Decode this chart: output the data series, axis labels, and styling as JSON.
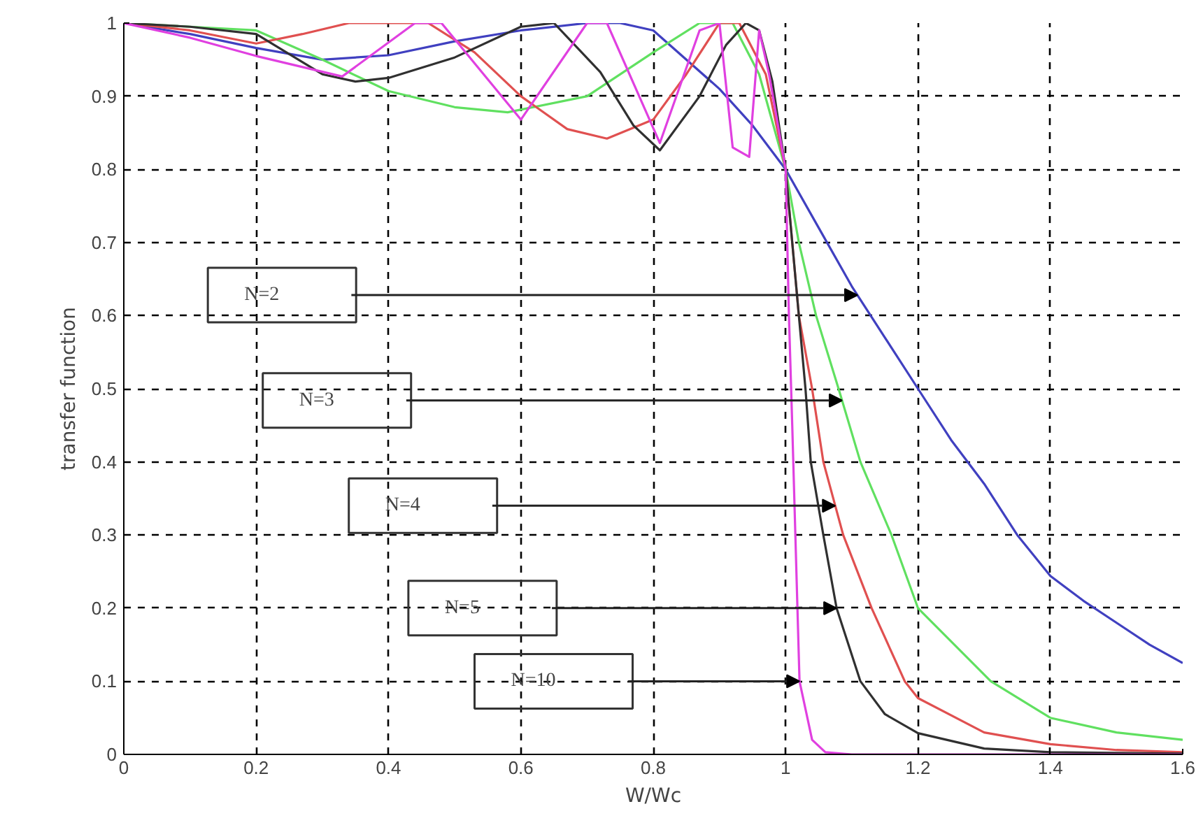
{
  "chart_data": {
    "type": "line",
    "xlabel": "W/Wc",
    "ylabel": "transfer function",
    "xlim": [
      0,
      1.6
    ],
    "ylim": [
      0,
      1
    ],
    "xticks": [
      0,
      0.2,
      0.4,
      0.6,
      0.8,
      1,
      1.2,
      1.4,
      1.6
    ],
    "yticks": [
      0,
      0.1,
      0.2,
      0.3,
      0.4,
      0.5,
      0.6,
      0.7,
      0.8,
      0.9,
      1
    ],
    "grid": true,
    "marker": "none",
    "line_style": "solid",
    "series": [
      {
        "color": "#4040c0",
        "x": [
          0,
          0.1,
          0.2,
          0.3,
          0.4,
          0.5,
          0.6,
          0.7,
          0.75,
          0.8,
          0.9,
          0.95,
          1.0,
          1.05,
          1.1,
          1.15,
          1.2,
          1.25,
          1.3,
          1.35,
          1.4,
          1.45,
          1.5,
          1.55,
          1.6
        ],
        "values": [
          1,
          0.985,
          0.966,
          0.95,
          0.956,
          0.975,
          0.99,
          1.0,
          1.0,
          0.99,
          0.91,
          0.86,
          0.8,
          0.72,
          0.64,
          0.57,
          0.5,
          0.43,
          0.37,
          0.3,
          0.244,
          0.21,
          0.18,
          0.15,
          0.125
        ]
      },
      {
        "color": "#60e060",
        "x": [
          0,
          0.1,
          0.2,
          0.3,
          0.4,
          0.5,
          0.58,
          0.7,
          0.8,
          0.87,
          0.92,
          0.96,
          1.0,
          1.02,
          1.046,
          1.08,
          1.113,
          1.16,
          1.2,
          1.31,
          1.4,
          1.5,
          1.6
        ],
        "values": [
          1,
          0.995,
          0.99,
          0.95,
          0.907,
          0.885,
          0.878,
          0.9,
          0.96,
          1.0,
          1.0,
          0.93,
          0.8,
          0.7,
          0.6,
          0.5,
          0.4,
          0.3,
          0.2,
          0.1,
          0.05,
          0.03,
          0.02
        ]
      },
      {
        "color": "#e05050",
        "x": [
          0,
          0.1,
          0.2,
          0.27,
          0.34,
          0.46,
          0.53,
          0.6,
          0.67,
          0.73,
          0.8,
          0.85,
          0.9,
          0.93,
          0.97,
          1.0,
          1.01,
          1.02,
          1.04,
          1.057,
          1.087,
          1.13,
          1.18,
          1.2,
          1.3,
          1.4,
          1.5,
          1.6
        ],
        "values": [
          1,
          0.99,
          0.972,
          0.985,
          1.0,
          1.0,
          0.96,
          0.9,
          0.855,
          0.842,
          0.868,
          0.93,
          1.0,
          1.0,
          0.93,
          0.8,
          0.7,
          0.6,
          0.5,
          0.4,
          0.3,
          0.2,
          0.1,
          0.077,
          0.03,
          0.014,
          0.006,
          0.003
        ]
      },
      {
        "color": "#303030",
        "x": [
          0,
          0.1,
          0.2,
          0.3,
          0.35,
          0.4,
          0.5,
          0.6,
          0.65,
          0.72,
          0.77,
          0.81,
          0.87,
          0.91,
          0.94,
          0.96,
          0.98,
          1.0,
          1.01,
          1.02,
          1.03,
          1.038,
          1.057,
          1.077,
          1.113,
          1.15,
          1.2,
          1.3,
          1.4,
          1.6
        ],
        "values": [
          1,
          0.995,
          0.985,
          0.93,
          0.92,
          0.925,
          0.953,
          0.995,
          1.0,
          0.933,
          0.86,
          0.826,
          0.9,
          0.97,
          1.0,
          0.99,
          0.92,
          0.8,
          0.7,
          0.6,
          0.5,
          0.4,
          0.3,
          0.2,
          0.1,
          0.055,
          0.029,
          0.008,
          0.003,
          0.001
        ]
      },
      {
        "color": "#e040e0",
        "x": [
          0,
          0.1,
          0.2,
          0.33,
          0.44,
          0.48,
          0.6,
          0.7,
          0.73,
          0.81,
          0.87,
          0.9,
          0.92,
          0.945,
          0.96,
          0.975,
          1.0,
          1.005,
          1.01,
          1.021,
          1.04,
          1.06,
          1.1,
          1.6
        ],
        "values": [
          1,
          0.98,
          0.955,
          0.927,
          1.0,
          1.0,
          0.868,
          1.0,
          1.0,
          0.836,
          0.99,
          1.0,
          0.83,
          0.817,
          0.99,
          0.93,
          0.8,
          0.6,
          0.45,
          0.1,
          0.02,
          0.003,
          0.0,
          0.0
        ]
      }
    ],
    "annotations": [
      "N=2",
      "N=3",
      "N=4",
      "N=5",
      "N=10"
    ]
  }
}
